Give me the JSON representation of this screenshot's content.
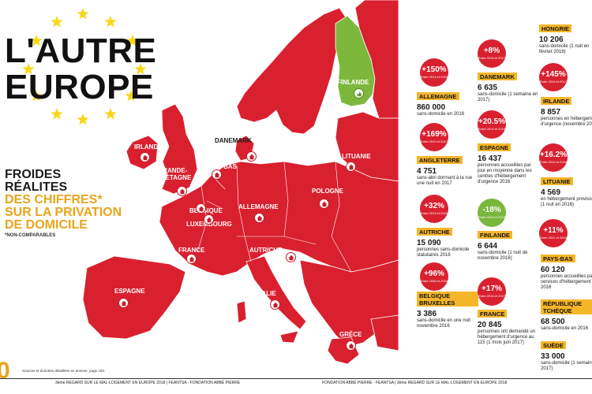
{
  "title": {
    "line1": "L'AUTRE",
    "line2": "EUROPE"
  },
  "subtitle": {
    "line1": "FROIDES",
    "line2": "RÉALITES",
    "line3": "DES CHIFFRES*",
    "line4": "SUR LA PRIVATION",
    "line5": "DE DOMICILE",
    "note": "*NON-COMPARABLES"
  },
  "map_labels": {
    "irlande": "IRLANDE",
    "grande_bretagne_1": "GRANDE-",
    "grande_bretagne_2": "BRETAGNE",
    "danemark": "DANEMARK",
    "pays_bas": "PAYS-BAS",
    "belgique": "BELGIQUE",
    "luxembourg": "LUXEMBOURG",
    "allemagne": "ALLEMAGNE",
    "pologne": "POLOGNE",
    "lituanie": "LITUANIE",
    "finlande": "FINLANDE",
    "france": "FRANCE",
    "autriche": "AUTRICHE",
    "espagne": "ESPAGNE",
    "italie": "ITALIE",
    "grece": "GRÈCE"
  },
  "stats": [
    {
      "key": "allemagne",
      "badge": "+150%",
      "period": "Entre 2014 et 2016",
      "country": "ALLEMAGNE",
      "value": "860 000",
      "desc": "sans-domicile en 2016",
      "color": "red"
    },
    {
      "key": "danemark",
      "badge": "+8%",
      "period": "Entre 2015 et 2017",
      "country": "DANEMARK",
      "value": "6 635",
      "desc": "sans-domicile (1 semaine en 2017)",
      "color": "red"
    },
    {
      "key": "hongrie",
      "badge": "",
      "period": "",
      "country": "HONGRIE",
      "value": "10 206",
      "desc": "sans-domicile (1 nuit en février 2016)",
      "color": "red"
    },
    {
      "key": "irlande",
      "badge": "+145%",
      "period": "Entre 2014 et 2017",
      "country": "IRLANDE",
      "value": "8 857",
      "desc": "personnes en hébergement d'urgence (novembre 2017)",
      "color": "red"
    },
    {
      "key": "angleterre",
      "badge": "+169%",
      "period": "Entre 2010 et 2017",
      "country": "ANGLETERRE",
      "value": "4 751",
      "desc": "sans-abri dormant à la rue une nuit en 2017",
      "color": "red"
    },
    {
      "key": "espagne",
      "badge": "+20.5%",
      "period": "Entre 2014 et 2016",
      "country": "ESPAGNE",
      "value": "16 437",
      "desc": "personnes accueillies par jour en moyenne dans les centres d'hébergement d'urgence 2016",
      "color": "red"
    },
    {
      "key": "lituanie",
      "badge": "+16.2%",
      "period": "Entre 2014 et 2016",
      "country": "LITUANIE",
      "value": "4 569",
      "desc": "en hébergement provisoire (1 nuit en 2016)",
      "color": "red"
    },
    {
      "key": "autriche",
      "badge": "+32%",
      "period": "Entre 2014 et 2016",
      "country": "AUTRICHE",
      "value": "15 090",
      "desc": "personnes sans-domicile statutaires 2016",
      "color": "red"
    },
    {
      "key": "finlande",
      "badge": "-18%",
      "period": "Entre 2013 et 2016",
      "country": "FINLANDE",
      "value": "6 644",
      "desc": "sans-domicile (1 nuit de novembre 2016)",
      "color": "green"
    },
    {
      "key": "paysbas",
      "badge": "+11%",
      "period": "Entre 2011 et 2016",
      "country": "PAYS-BAS",
      "value": "60 120",
      "desc": "personnes accueillies par les services d'hébergement en 2016",
      "color": "red"
    },
    {
      "key": "belgique",
      "badge": "+96%",
      "period": "Entre 2008 et 2016",
      "country": "BELGIQUE BRUXELLES",
      "value": "3 386",
      "desc": "sans-domicile en une nuit novembre 2016",
      "color": "red"
    },
    {
      "key": "france",
      "badge": "+17%",
      "period": "Entre 2016 et 2017",
      "country": "FRANCE",
      "value": "20 845",
      "desc": "personnes ont demandé un hébergement d'urgence au 115 (1 mois juin 2017)",
      "color": "red"
    },
    {
      "key": "tcheque",
      "badge": "",
      "period": "",
      "country": "RÉPUBLIQUE TCHÈQUE",
      "value": "68 500",
      "desc": "sans-domicile en 2016",
      "color": "red"
    },
    {
      "key": "suede",
      "badge": "",
      "period": "",
      "country": "SUÈDE",
      "value": "33 000",
      "desc": "sans-domicile (1 semaine en 2017)",
      "color": "red"
    }
  ],
  "footer": {
    "page": "0",
    "sources": "Sources et données détaillées en annexe, page 100.",
    "left": "3ème REGARD SUR LE MAL-LOGEMENT EN EUROPE 2018 | FEANTSA - FONDATION ABBÉ PIERRE",
    "right": "FONDATION ABBÉ PIERRE - FEANTSA | 3ème REGARD SUR LE MAL-LOGEMENT EN EUROPE 2018"
  },
  "colors": {
    "map_red": "#d9202f",
    "finland_green": "#7db83d",
    "accent_yellow": "#f5b62a",
    "star_yellow": "#f7d71e",
    "border": "#b0121f"
  }
}
